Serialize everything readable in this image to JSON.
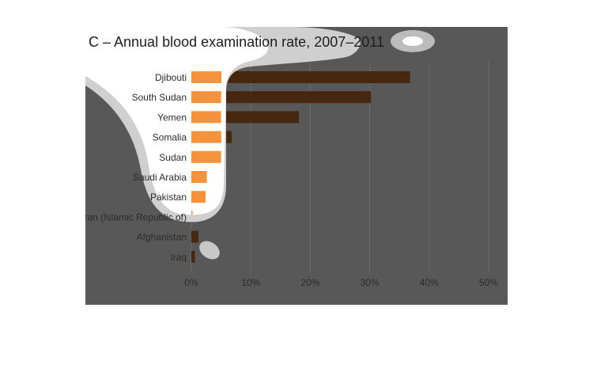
{
  "chart_data": {
    "type": "bar",
    "orientation": "horizontal",
    "title": "C – Annual blood examination rate, 2007–2011",
    "categories": [
      "Djibouti",
      "South Sudan",
      "Yemen",
      "Somalia",
      "Sudan",
      "Saudi Arabia",
      "Pakistan",
      "Iran (Islamic Republic of)",
      "Afghanistan",
      "Iraq"
    ],
    "values": [
      36.8,
      30.2,
      18.1,
      6.8,
      5.0,
      2.6,
      2.4,
      0.2,
      1.2,
      0.6
    ],
    "xlim": [
      0,
      50
    ],
    "xticks": [
      "0%",
      "10%",
      "20%",
      "30%",
      "40%",
      "50%"
    ],
    "tick_values": [
      0,
      10,
      20,
      30,
      40,
      50
    ],
    "grid": "vertical",
    "colors": {
      "panel_background": "#585858",
      "bar_dark": "#45280f",
      "bar_highlight": "#f5923e",
      "gridline": "#6b6b6b",
      "label_text": "#2b2b2b"
    }
  }
}
